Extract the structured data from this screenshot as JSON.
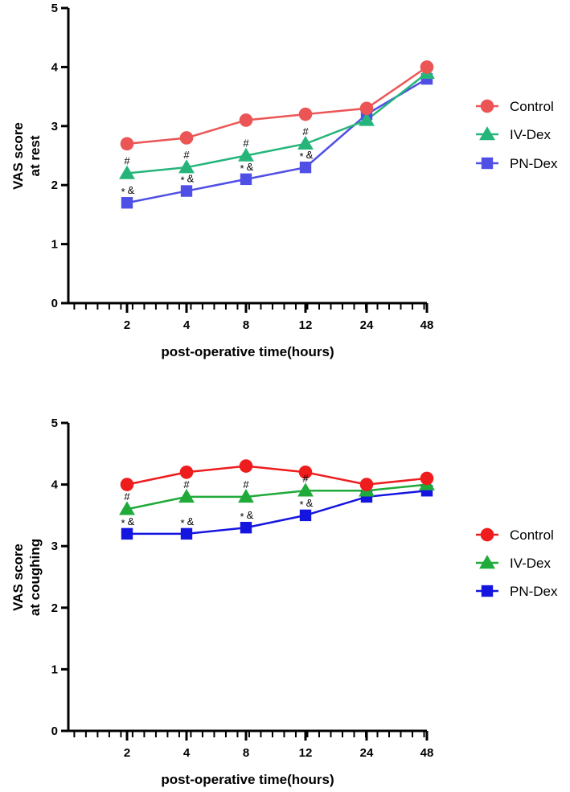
{
  "chart_data": [
    {
      "type": "line",
      "title": "",
      "xlabel": "post-operative time(hours)",
      "ylabel_lines": [
        "VAS score",
        "at rest"
      ],
      "categories": [
        "2",
        "4",
        "8",
        "12",
        "24",
        "48"
      ],
      "yticks": [
        "0",
        "1",
        "2",
        "3",
        "4",
        "5"
      ],
      "ylim": [
        0,
        5
      ],
      "legend_position": "right",
      "series": [
        {
          "name": "Control",
          "marker": "circle",
          "color": "#ec5555",
          "values": [
            2.7,
            2.8,
            3.1,
            3.2,
            3.3,
            4.0
          ]
        },
        {
          "name": "IV-Dex",
          "marker": "triangle",
          "color": "#25b57a",
          "values": [
            2.2,
            2.3,
            2.5,
            2.7,
            3.1,
            3.9
          ]
        },
        {
          "name": "PN-Dex",
          "marker": "square",
          "color": "#4f4fe6",
          "values": [
            1.7,
            1.9,
            2.1,
            2.3,
            3.2,
            3.8
          ]
        }
      ],
      "annotations": [
        {
          "category": "2",
          "hash": "#",
          "star": "*",
          "amp": "&"
        },
        {
          "category": "4",
          "hash": "#",
          "star": "*",
          "amp": "&"
        },
        {
          "category": "8",
          "hash": "#",
          "star": "*",
          "amp": "&"
        },
        {
          "category": "12",
          "hash": "#",
          "star": "*",
          "amp": "&"
        }
      ]
    },
    {
      "type": "line",
      "title": "",
      "xlabel": "post-operative time(hours)",
      "ylabel_lines": [
        "VAS score",
        "at coughing"
      ],
      "categories": [
        "2",
        "4",
        "8",
        "12",
        "24",
        "48"
      ],
      "yticks": [
        "0",
        "1",
        "2",
        "3",
        "4",
        "5"
      ],
      "ylim": [
        0,
        5
      ],
      "legend_position": "right",
      "series": [
        {
          "name": "Control",
          "marker": "circle",
          "color": "#ee1c1c",
          "values": [
            4.0,
            4.2,
            4.3,
            4.2,
            4.0,
            4.1
          ]
        },
        {
          "name": "IV-Dex",
          "marker": "triangle",
          "color": "#1faa3a",
          "values": [
            3.6,
            3.8,
            3.8,
            3.9,
            3.9,
            4.0
          ]
        },
        {
          "name": "PN-Dex",
          "marker": "square",
          "color": "#1515e0",
          "values": [
            3.2,
            3.2,
            3.3,
            3.5,
            3.8,
            3.9
          ]
        }
      ],
      "annotations": [
        {
          "category": "2",
          "hash": "#",
          "star": "*",
          "amp": "&"
        },
        {
          "category": "4",
          "hash": "#",
          "star": "*",
          "amp": "&"
        },
        {
          "category": "8",
          "hash": "#",
          "star": "*",
          "amp": "&"
        },
        {
          "category": "12",
          "hash": "#",
          "star": "*",
          "amp": "&"
        }
      ]
    }
  ]
}
